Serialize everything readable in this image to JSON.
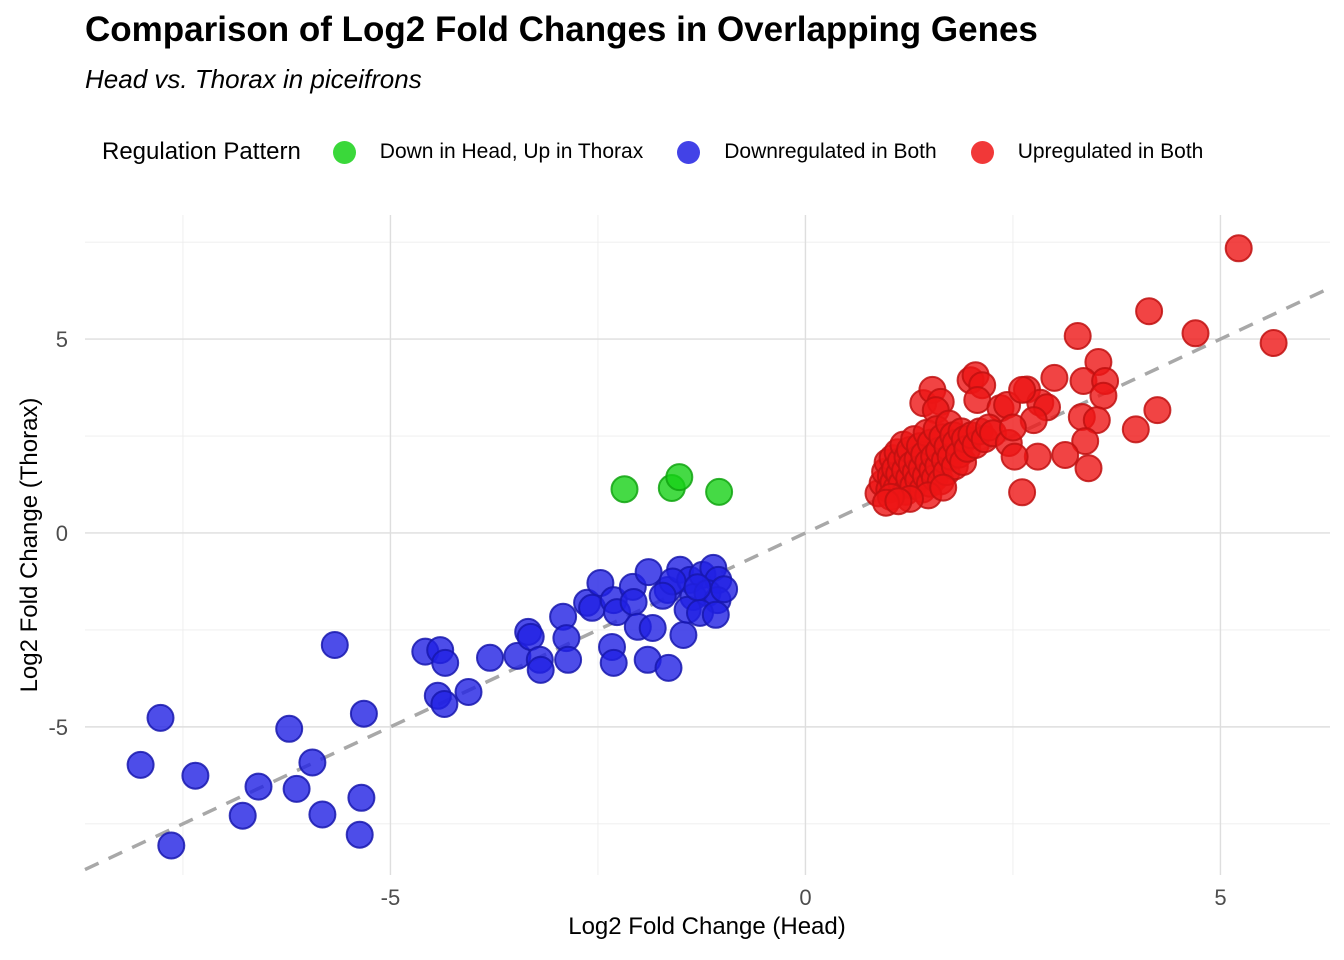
{
  "title": "Comparison of Log2 Fold Changes in Overlapping Genes",
  "subtitle": "Head vs. Thorax in piceifrons",
  "legend": {
    "title": "Regulation Pattern",
    "items": [
      {
        "label": "Down in Head, Up in Thorax",
        "color": "#17D117"
      },
      {
        "label": "Downregulated in Both",
        "color": "#2121E3"
      },
      {
        "label": "Upregulated in Both",
        "color": "#EE1515"
      }
    ]
  },
  "chart_data": {
    "type": "scatter",
    "xlabel": "Log2 Fold Change (Head)",
    "ylabel": "Log2 Fold Change (Thorax)",
    "xlim": [
      -8.68,
      6.32
    ],
    "ylim": [
      -8.82,
      8.2
    ],
    "x_ticks": [
      {
        "value": -5,
        "label": "-5"
      },
      {
        "value": 0,
        "label": "0"
      },
      {
        "value": 5,
        "label": "5"
      }
    ],
    "y_ticks": [
      {
        "value": -5,
        "label": "-5"
      },
      {
        "value": 0,
        "label": "0"
      },
      {
        "value": 5,
        "label": "5"
      }
    ],
    "x_minor": [
      -7.5,
      -2.5,
      2.5,
      7.5
    ],
    "y_minor": [
      -7.5,
      -2.5,
      2.5,
      7.5
    ],
    "grid": {
      "major_color": "#DEDEDE",
      "minor_color": "#EDEDED",
      "major_width": 1.4,
      "minor_width": 0.9
    },
    "identity_line": {
      "from": [
        -8.68,
        -8.68
      ],
      "to": [
        6.32,
        6.32
      ],
      "color": "#A8A8A8",
      "dash": [
        15,
        11
      ],
      "width": 3.5
    },
    "point_radius": 13,
    "fill_opacity": 0.8,
    "legend_position": "top",
    "series": [
      {
        "name": "Down in Head, Up in Thorax",
        "color": "#17D117",
        "stroke": "#10A510",
        "points": [
          [
            -2.18,
            1.13
          ],
          [
            -1.61,
            1.16
          ],
          [
            -1.52,
            1.44
          ],
          [
            -1.04,
            1.06
          ]
        ]
      },
      {
        "name": "Downregulated in Both",
        "color": "#2121E3",
        "stroke": "#1717AE",
        "points": [
          [
            -7.77,
            -4.77
          ],
          [
            -6.22,
            -5.05
          ],
          [
            -5.32,
            -4.66
          ],
          [
            -8.01,
            -5.98
          ],
          [
            -7.35,
            -6.26
          ],
          [
            -5.94,
            -5.92
          ],
          [
            -6.59,
            -6.54
          ],
          [
            -6.13,
            -6.6
          ],
          [
            -6.78,
            -7.29
          ],
          [
            -5.82,
            -7.26
          ],
          [
            -5.35,
            -6.83
          ],
          [
            -5.37,
            -7.78
          ],
          [
            -7.64,
            -8.06
          ],
          [
            -5.67,
            -2.89
          ],
          [
            -4.58,
            -3.06
          ],
          [
            -4.4,
            -3.02
          ],
          [
            -4.34,
            -3.35
          ],
          [
            -4.43,
            -4.2
          ],
          [
            -4.35,
            -4.41
          ],
          [
            -4.06,
            -4.1
          ],
          [
            -3.8,
            -3.22
          ],
          [
            -3.47,
            -3.17
          ],
          [
            -3.34,
            -2.55
          ],
          [
            -3.31,
            -2.68
          ],
          [
            -3.2,
            -3.27
          ],
          [
            -3.19,
            -3.53
          ],
          [
            -2.92,
            -2.16
          ],
          [
            -2.88,
            -2.71
          ],
          [
            -2.86,
            -3.27
          ],
          [
            -2.63,
            -1.8
          ],
          [
            -2.47,
            -1.29
          ],
          [
            -2.57,
            -1.93
          ],
          [
            -2.31,
            -1.73
          ],
          [
            -2.27,
            -2.04
          ],
          [
            -2.33,
            -2.94
          ],
          [
            -2.31,
            -3.35
          ],
          [
            -2.08,
            -1.39
          ],
          [
            -2.07,
            -1.78
          ],
          [
            -2.02,
            -2.42
          ],
          [
            -1.89,
            -1.01
          ],
          [
            -1.84,
            -2.45
          ],
          [
            -1.9,
            -3.27
          ],
          [
            -1.66,
            -1.47
          ],
          [
            -1.51,
            -0.95
          ],
          [
            -1.47,
            -2.63
          ],
          [
            -1.65,
            -3.48
          ],
          [
            -1.39,
            -1.21
          ],
          [
            -1.24,
            -1.08
          ],
          [
            -1.11,
            -0.9
          ],
          [
            -1.05,
            -1.21
          ],
          [
            -1.35,
            -1.65
          ],
          [
            -1.18,
            -1.55
          ],
          [
            -1.06,
            -1.73
          ],
          [
            -1.42,
            -1.98
          ],
          [
            -1.27,
            -2.06
          ],
          [
            -1.08,
            -2.11
          ],
          [
            -1.6,
            -1.25
          ],
          [
            -1.3,
            -1.4
          ],
          [
            -0.98,
            -1.45
          ],
          [
            -1.72,
            -1.62
          ]
        ]
      },
      {
        "name": "Upregulated in Both",
        "color": "#EE1515",
        "stroke": "#C01010",
        "points": [
          [
            5.22,
            7.34
          ],
          [
            4.14,
            5.72
          ],
          [
            4.7,
            5.15
          ],
          [
            5.64,
            4.9
          ],
          [
            3.28,
            5.08
          ],
          [
            3.53,
            4.41
          ],
          [
            3.0,
            4.0
          ],
          [
            3.35,
            3.92
          ],
          [
            3.61,
            3.92
          ],
          [
            2.67,
            3.7
          ],
          [
            3.59,
            3.54
          ],
          [
            2.83,
            3.36
          ],
          [
            2.91,
            3.24
          ],
          [
            4.24,
            3.17
          ],
          [
            3.33,
            2.99
          ],
          [
            3.51,
            2.91
          ],
          [
            2.75,
            2.91
          ],
          [
            3.98,
            2.67
          ],
          [
            3.37,
            2.37
          ],
          [
            2.8,
            1.97
          ],
          [
            3.13,
            2.01
          ],
          [
            3.41,
            1.67
          ],
          [
            2.61,
            1.05
          ],
          [
            1.42,
            3.35
          ],
          [
            1.53,
            3.69
          ],
          [
            1.63,
            3.38
          ],
          [
            1.57,
            3.17
          ],
          [
            1.99,
            3.94
          ],
          [
            2.05,
            4.07
          ],
          [
            2.13,
            3.81
          ],
          [
            2.07,
            3.43
          ],
          [
            2.35,
            3.22
          ],
          [
            2.43,
            3.3
          ],
          [
            2.61,
            3.69
          ],
          [
            0.88,
            1.02
          ],
          [
            0.93,
            1.28
          ],
          [
            0.96,
            1.58
          ],
          [
            0.99,
            1.82
          ],
          [
            1.01,
            1.12
          ],
          [
            1.03,
            1.47
          ],
          [
            1.05,
            1.93
          ],
          [
            1.06,
            1.31
          ],
          [
            1.08,
            1.66
          ],
          [
            1.1,
            1.16
          ],
          [
            1.11,
            2.08
          ],
          [
            1.13,
            1.52
          ],
          [
            1.15,
            1.86
          ],
          [
            1.16,
            1.27
          ],
          [
            1.18,
            2.28
          ],
          [
            1.2,
            1.61
          ],
          [
            1.21,
            1.06
          ],
          [
            1.23,
            1.96
          ],
          [
            1.25,
            1.42
          ],
          [
            1.26,
            2.14
          ],
          [
            1.28,
            1.76
          ],
          [
            1.3,
            1.22
          ],
          [
            1.31,
            2.42
          ],
          [
            1.33,
            1.57
          ],
          [
            1.35,
            1.9
          ],
          [
            1.36,
            1.37
          ],
          [
            1.38,
            2.24
          ],
          [
            1.4,
            1.67
          ],
          [
            1.41,
            1.12
          ],
          [
            1.43,
            2.02
          ],
          [
            1.45,
            1.47
          ],
          [
            1.46,
            2.58
          ],
          [
            1.48,
            1.82
          ],
          [
            1.5,
            1.27
          ],
          [
            1.51,
            2.33
          ],
          [
            1.53,
            1.62
          ],
          [
            1.55,
            1.97
          ],
          [
            1.56,
            1.42
          ],
          [
            1.58,
            2.68
          ],
          [
            1.6,
            1.72
          ],
          [
            1.61,
            2.12
          ],
          [
            1.63,
            1.33
          ],
          [
            1.65,
            2.47
          ],
          [
            1.68,
            1.87
          ],
          [
            1.7,
            1.57
          ],
          [
            1.71,
            2.22
          ],
          [
            1.73,
            2.82
          ],
          [
            1.75,
            1.97
          ],
          [
            1.78,
            2.52
          ],
          [
            1.8,
            1.72
          ],
          [
            1.81,
            2.32
          ],
          [
            1.85,
            2.02
          ],
          [
            1.88,
            2.62
          ],
          [
            1.9,
            1.83
          ],
          [
            1.92,
            2.42
          ],
          [
            1.95,
            2.17
          ],
          [
            2.0,
            2.52
          ],
          [
            2.05,
            2.27
          ],
          [
            2.1,
            2.62
          ],
          [
            2.16,
            2.42
          ],
          [
            2.21,
            2.72
          ],
          [
            1.48,
            0.97
          ],
          [
            1.26,
            0.88
          ],
          [
            1.66,
            1.17
          ],
          [
            1.03,
            0.93
          ],
          [
            2.26,
            2.57
          ],
          [
            2.45,
            2.32
          ],
          [
            2.5,
            2.72
          ],
          [
            2.52,
            1.97
          ],
          [
            0.97,
            0.78
          ],
          [
            1.12,
            0.82
          ]
        ]
      }
    ]
  }
}
